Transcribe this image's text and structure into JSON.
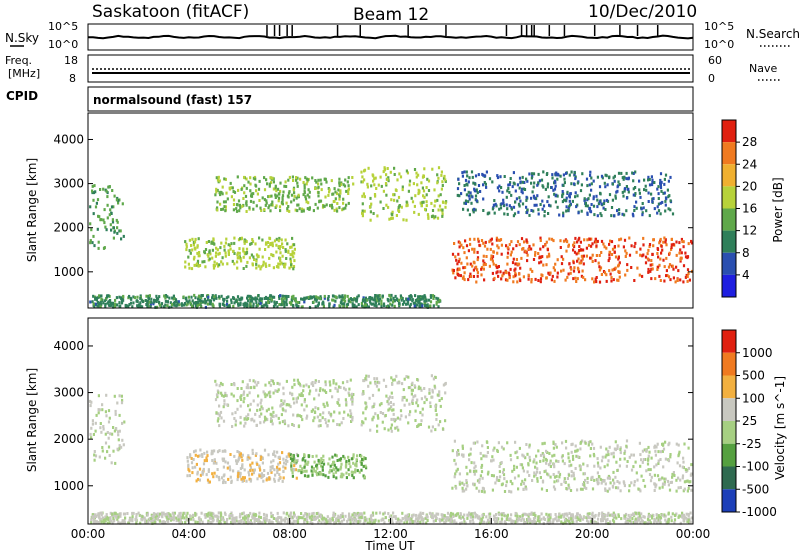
{
  "header": {
    "station": "Saskatoon (fitACF)",
    "beam": "Beam 12",
    "date": "10/Dec/2010"
  },
  "noise_panel": {
    "label": "N.Sky",
    "right_label": "N.Search",
    "left_ticks": [
      "10^5",
      "10^0"
    ],
    "right_ticks": [
      "10^5",
      "10^0"
    ]
  },
  "freq_panel": {
    "label_1": "Freq.",
    "label_2": "[MHz]",
    "right_label": "Nave",
    "left_ticks": [
      "18",
      "8"
    ],
    "right_ticks": [
      "60",
      "0"
    ]
  },
  "cpid_panel": {
    "label": "CPID",
    "mode": "normalsound (fast) 157"
  },
  "power_colorbar": {
    "title": "Power [dB]",
    "ticks": [
      "28",
      "24",
      "20",
      "16",
      "12",
      "8",
      "4"
    ],
    "colors": [
      "#1f1fe0",
      "#2a4fb0",
      "#2f7f5a",
      "#5fa84a",
      "#b7d23a",
      "#f0b030",
      "#f07a20",
      "#e02010"
    ]
  },
  "velocity_colorbar": {
    "title": "Velocity [m s^-1]",
    "ticks": [
      "1000",
      "500",
      "100",
      "25",
      "-25",
      "-100",
      "-500",
      "-1000"
    ],
    "colors": [
      "#1c3fb8",
      "#2f6a50",
      "#55a040",
      "#a6cf82",
      "#c8c8c0",
      "#f2b040",
      "#f07a20",
      "#e02010"
    ]
  },
  "time_axis": {
    "label": "Time UT",
    "ticks": [
      "00:00",
      "04:00",
      "08:00",
      "12:00",
      "16:00",
      "20:00",
      "00:00"
    ]
  },
  "chart_data": [
    {
      "type": "heatmap",
      "title": "Power [dB]",
      "xlabel": "Time UT",
      "ylabel": "Slant Range [km]",
      "yticks": [
        1000,
        2000,
        3000,
        4000
      ],
      "ylim": [
        180,
        4600
      ],
      "xlim": [
        0,
        24
      ],
      "colorscale_range": [
        0,
        30
      ],
      "features": [
        {
          "t0": 0.0,
          "t1": 1.4,
          "r0": 1500,
          "r1": 3000,
          "v": 12
        },
        {
          "t0": 5.0,
          "t1": 10.5,
          "r0": 2400,
          "r1": 3200,
          "v": 14
        },
        {
          "t0": 10.8,
          "t1": 14.2,
          "r0": 2200,
          "r1": 3400,
          "v": 16
        },
        {
          "t0": 3.8,
          "t1": 8.2,
          "r0": 1100,
          "r1": 1800,
          "v": 16
        },
        {
          "t0": 14.4,
          "t1": 24.0,
          "r0": 800,
          "r1": 1800,
          "v": 26
        },
        {
          "t0": 14.6,
          "t1": 23.2,
          "r0": 2300,
          "r1": 3300,
          "v": 8
        },
        {
          "t0": 0.0,
          "t1": 14.0,
          "r0": 200,
          "r1": 500,
          "v": 10
        }
      ]
    },
    {
      "type": "heatmap",
      "title": "Velocity [m s^-1]",
      "xlabel": "Time UT",
      "ylabel": "Slant Range [km]",
      "yticks": [
        1000,
        2000,
        3000,
        4000
      ],
      "ylim": [
        180,
        4600
      ],
      "xlim": [
        0,
        24
      ],
      "colorscale_range": [
        -1000,
        1000
      ],
      "features": [
        {
          "t0": 0.0,
          "t1": 1.4,
          "r0": 1500,
          "r1": 3000,
          "v": 0
        },
        {
          "t0": 5.0,
          "t1": 10.5,
          "r0": 2300,
          "r1": 3300,
          "v": 0
        },
        {
          "t0": 10.8,
          "t1": 14.2,
          "r0": 2200,
          "r1": 3400,
          "v": 0
        },
        {
          "t0": 3.9,
          "t1": 8.3,
          "r0": 1100,
          "r1": 1800,
          "v": 200
        },
        {
          "t0": 8.0,
          "t1": 11.0,
          "r0": 1200,
          "r1": 1700,
          "v": -200
        },
        {
          "t0": 14.4,
          "t1": 24.0,
          "r0": 900,
          "r1": 2000,
          "v": 0
        },
        {
          "t0": 0.0,
          "t1": 24.0,
          "r0": 200,
          "r1": 450,
          "v": 60
        }
      ]
    }
  ]
}
